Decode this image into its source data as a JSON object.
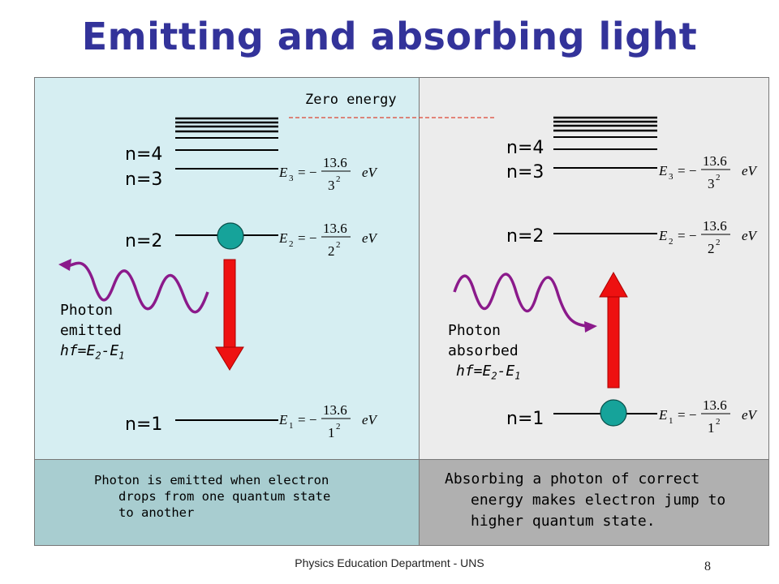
{
  "title": "Emitting and absorbing light",
  "zero_energy": "Zero energy",
  "left": {
    "levels": [
      "n=4",
      "n=3",
      "n=2",
      "n=1"
    ],
    "photon_line1": "Photon",
    "photon_line2": "emitted",
    "photon_formula": "hf=E2-E1",
    "caption_line1": "Photon is emitted when electron",
    "caption_line2": "drops from one quantum state",
    "caption_line3": "to another"
  },
  "right": {
    "levels": [
      "n=4",
      "n=3",
      "n=2",
      "n=1"
    ],
    "photon_line1": "Photon",
    "photon_line2": "absorbed",
    "photon_formula": "hf=E2-E1",
    "caption_line1": "Absorbing a photon of correct",
    "caption_line2": "energy makes electron jump to",
    "caption_line3": "higher quantum state."
  },
  "equations": {
    "e3": "E3 = -13.6/3^2 eV",
    "e2": "E2 = -13.6/2^2 eV",
    "e1": "E1 = -13.6/1^2 eV"
  },
  "footer": "Physics Education Department - UNS",
  "page_number": "8",
  "colors": {
    "title": "#33339a",
    "electron": "#16a39a",
    "arrow": "#ee1111",
    "photon": "#8b1a8b"
  }
}
